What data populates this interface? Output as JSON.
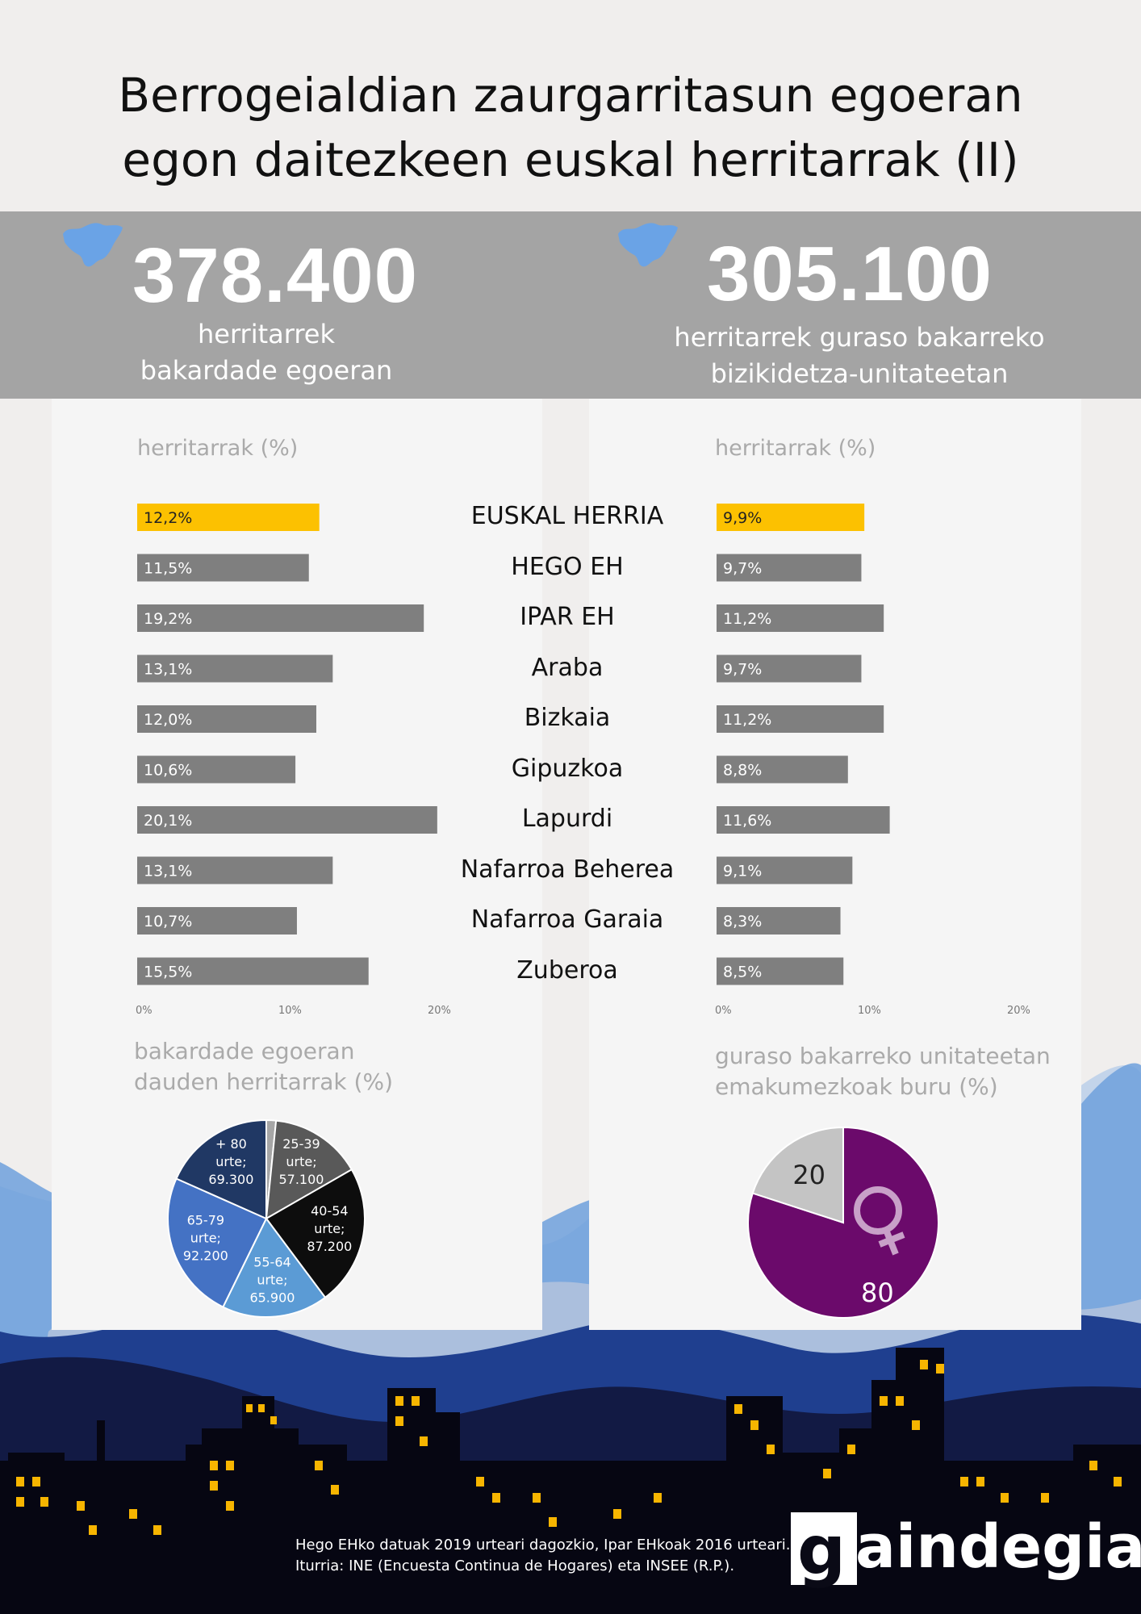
{
  "title_line1": "Berrogeialdian zaurgarritasun egoeran",
  "title_line2": "egon daitezkeen euskal herritarrak (II)",
  "left_panel": {
    "big_number": "378.400",
    "sub_line1": "herritarrek",
    "sub_line2": "bakardade egoeran",
    "axis_title": "herritarrak (%)",
    "pie_title_line1": "bakardade egoeran",
    "pie_title_line2": "dauden herritarrak (%)"
  },
  "right_panel": {
    "big_number": "305.100",
    "sub_line1": "herritarrek guraso bakarreko",
    "sub_line2": "bizikidetza-unitateetan",
    "axis_title": "herritarrak (%)",
    "pie_title_line1": "guraso bakarreko unitateetan",
    "pie_title_line2": "emakumezkoak buru (%)"
  },
  "colors": {
    "highlight": "#fcc101",
    "bar": "#7f7f7f",
    "band": "#a4a4a4",
    "purple": "#6b0a6b",
    "pie_grey": "#c4c4c4"
  },
  "chart_data": [
    {
      "type": "bar",
      "orientation": "horizontal",
      "categories": [
        "EUSKAL HERRIA",
        "HEGO EH",
        "IPAR EH",
        "Araba",
        "Bizkaia",
        "Gipuzkoa",
        "Lapurdi",
        "Nafarroa Beherea",
        "Nafarroa Garaia",
        "Zuberoa"
      ],
      "values": [
        12.2,
        11.5,
        19.2,
        13.1,
        12.0,
        10.6,
        20.1,
        13.1,
        10.7,
        15.5
      ],
      "labels": [
        "12,2%",
        "11,5%",
        "19,2%",
        "13,1%",
        "12,0%",
        "10,6%",
        "20,1%",
        "13,1%",
        "10,7%",
        "15,5%"
      ],
      "xlabel": "herritarrak (%)",
      "xlim": [
        0,
        20
      ],
      "ticks": [
        "0%",
        "10%",
        "20%"
      ],
      "highlight_index": 0
    },
    {
      "type": "bar",
      "orientation": "horizontal",
      "categories": [
        "EUSKAL HERRIA",
        "HEGO EH",
        "IPAR EH",
        "Araba",
        "Bizkaia",
        "Gipuzkoa",
        "Lapurdi",
        "Nafarroa Beherea",
        "Nafarroa Garaia",
        "Zuberoa"
      ],
      "values": [
        9.9,
        9.7,
        11.2,
        9.7,
        11.2,
        8.8,
        11.6,
        9.1,
        8.3,
        8.5
      ],
      "labels": [
        "9,9%",
        "9,7%",
        "11,2%",
        "9,7%",
        "11,2%",
        "8,8%",
        "11,6%",
        "9,1%",
        "8,3%",
        "8,5%"
      ],
      "xlabel": "herritarrak (%)",
      "xlim": [
        0,
        20
      ],
      "ticks": [
        "0%",
        "10%",
        "20%"
      ],
      "highlight_index": 0
    },
    {
      "type": "pie",
      "title": "bakardade egoeran dauden herritarrak (%)",
      "slices": [
        {
          "label": "",
          "value": 6000,
          "color": "#a6a6a6"
        },
        {
          "label": "25-39 urte; 57.100",
          "lines": [
            "25-39",
            "urte;",
            "57.100"
          ],
          "value": 57100,
          "color": "#595959"
        },
        {
          "label": "40-54 urte; 87.200",
          "lines": [
            "40-54",
            "urte;",
            "87.200"
          ],
          "value": 87200,
          "color": "#0d0d0d"
        },
        {
          "label": "55-64 urte; 65.900",
          "lines": [
            "55-64",
            "urte;",
            "65.900"
          ],
          "value": 65900,
          "color": "#5b9bd5"
        },
        {
          "label": "65-79 urte; 92.200",
          "lines": [
            "65-79",
            "urte;",
            "92.200"
          ],
          "value": 92200,
          "color": "#4472c4"
        },
        {
          "label": "+ 80 urte; 69.300",
          "lines": [
            "+ 80",
            "urte;",
            "69.300"
          ],
          "value": 69300,
          "color": "#203864"
        }
      ]
    },
    {
      "type": "pie",
      "title": "guraso bakarreko unitateetan emakumezkoak buru (%)",
      "slices": [
        {
          "label": "80",
          "value": 80,
          "color": "#6b0a6b"
        },
        {
          "label": "20",
          "value": 20,
          "color": "#c4c4c4"
        }
      ]
    }
  ],
  "footnote_line1": "Hego EHko datuak 2019 urteari dagozkio, Ipar EHkoak 2016 urteari.",
  "footnote_line2": "Iturria: INE (Encuesta Continua de Hogares) eta INSEE (R.P.).",
  "logo_text": "gaindegia"
}
